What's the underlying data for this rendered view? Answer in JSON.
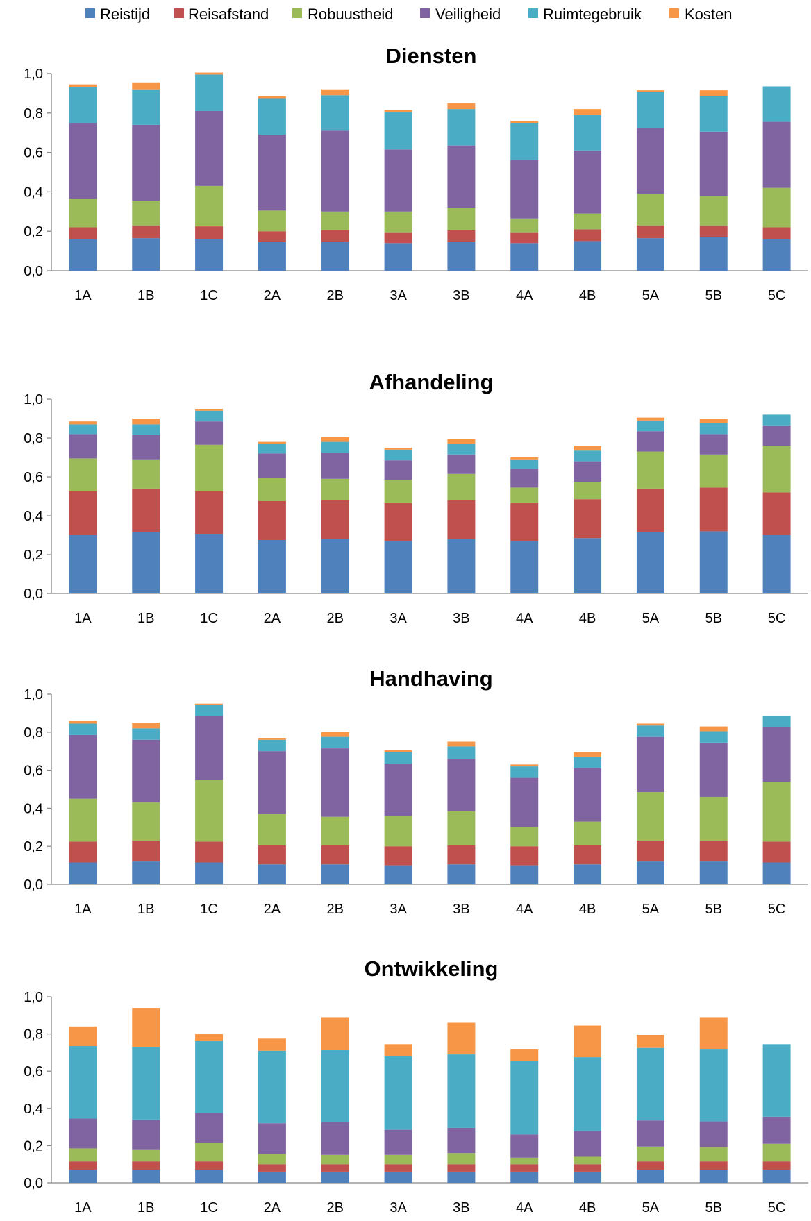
{
  "chart_data": {
    "type": "bar",
    "stacked": true,
    "legend": {
      "placement": "top",
      "entries": [
        {
          "name": "Reistijd",
          "color": "#4F81BD"
        },
        {
          "name": "Reisafstand",
          "color": "#C0504D"
        },
        {
          "name": "Robuustheid",
          "color": "#9BBB59"
        },
        {
          "name": "Veiligheid",
          "color": "#8064A2"
        },
        {
          "name": "Ruimtegebruik",
          "color": "#4BACC6"
        },
        {
          "name": "Kosten",
          "color": "#F79646"
        }
      ]
    },
    "categories": [
      "1A",
      "1B",
      "1C",
      "2A",
      "2B",
      "3A",
      "3B",
      "4A",
      "4B",
      "5A",
      "5B",
      "5C"
    ],
    "ylim": [
      0,
      1.0
    ],
    "yticks": [
      "0,0",
      "0,2",
      "0,4",
      "0,6",
      "0,8",
      "1,0"
    ],
    "grid": false,
    "panels": [
      {
        "title": "Diensten",
        "series": [
          {
            "name": "Reistijd",
            "values": [
              0.16,
              0.165,
              0.16,
              0.145,
              0.145,
              0.14,
              0.145,
              0.14,
              0.15,
              0.165,
              0.17,
              0.16
            ]
          },
          {
            "name": "Reisafstand",
            "values": [
              0.06,
              0.065,
              0.065,
              0.055,
              0.06,
              0.055,
              0.06,
              0.055,
              0.06,
              0.065,
              0.06,
              0.06
            ]
          },
          {
            "name": "Robuustheid",
            "values": [
              0.145,
              0.125,
              0.205,
              0.105,
              0.095,
              0.105,
              0.115,
              0.07,
              0.08,
              0.16,
              0.15,
              0.2
            ]
          },
          {
            "name": "Veiligheid",
            "values": [
              0.385,
              0.385,
              0.38,
              0.385,
              0.41,
              0.315,
              0.315,
              0.295,
              0.32,
              0.335,
              0.325,
              0.335
            ]
          },
          {
            "name": "Ruimtegebruik",
            "values": [
              0.18,
              0.18,
              0.185,
              0.185,
              0.18,
              0.19,
              0.185,
              0.19,
              0.18,
              0.18,
              0.18,
              0.18
            ]
          },
          {
            "name": "Kosten",
            "values": [
              0.015,
              0.035,
              0.01,
              0.01,
              0.03,
              0.01,
              0.03,
              0.01,
              0.03,
              0.01,
              0.03,
              0.0
            ]
          }
        ]
      },
      {
        "title": "Afhandeling",
        "series": [
          {
            "name": "Reistijd",
            "values": [
              0.3,
              0.315,
              0.305,
              0.275,
              0.28,
              0.27,
              0.28,
              0.27,
              0.285,
              0.315,
              0.32,
              0.3
            ]
          },
          {
            "name": "Reisafstand",
            "values": [
              0.225,
              0.225,
              0.22,
              0.2,
              0.2,
              0.195,
              0.2,
              0.195,
              0.2,
              0.225,
              0.225,
              0.22
            ]
          },
          {
            "name": "Robuustheid",
            "values": [
              0.17,
              0.15,
              0.24,
              0.12,
              0.11,
              0.12,
              0.135,
              0.08,
              0.09,
              0.19,
              0.17,
              0.24
            ]
          },
          {
            "name": "Veiligheid",
            "values": [
              0.125,
              0.125,
              0.12,
              0.125,
              0.135,
              0.1,
              0.1,
              0.095,
              0.105,
              0.105,
              0.105,
              0.105
            ]
          },
          {
            "name": "Ruimtegebruik",
            "values": [
              0.05,
              0.055,
              0.055,
              0.05,
              0.055,
              0.055,
              0.055,
              0.05,
              0.055,
              0.055,
              0.055,
              0.055
            ]
          },
          {
            "name": "Kosten",
            "values": [
              0.015,
              0.03,
              0.01,
              0.01,
              0.025,
              0.01,
              0.025,
              0.01,
              0.025,
              0.015,
              0.025,
              0.0
            ]
          }
        ]
      },
      {
        "title": "Handhaving",
        "series": [
          {
            "name": "Reistijd",
            "values": [
              0.115,
              0.12,
              0.115,
              0.105,
              0.105,
              0.1,
              0.105,
              0.1,
              0.105,
              0.12,
              0.12,
              0.115
            ]
          },
          {
            "name": "Reisafstand",
            "values": [
              0.11,
              0.11,
              0.11,
              0.1,
              0.1,
              0.1,
              0.1,
              0.1,
              0.1,
              0.11,
              0.11,
              0.11
            ]
          },
          {
            "name": "Robuustheid",
            "values": [
              0.225,
              0.2,
              0.325,
              0.165,
              0.15,
              0.16,
              0.18,
              0.1,
              0.125,
              0.255,
              0.23,
              0.315
            ]
          },
          {
            "name": "Veiligheid",
            "values": [
              0.335,
              0.33,
              0.335,
              0.33,
              0.36,
              0.275,
              0.275,
              0.26,
              0.28,
              0.29,
              0.285,
              0.285
            ]
          },
          {
            "name": "Ruimtegebruik",
            "values": [
              0.06,
              0.06,
              0.06,
              0.06,
              0.06,
              0.06,
              0.065,
              0.06,
              0.06,
              0.06,
              0.06,
              0.06
            ]
          },
          {
            "name": "Kosten",
            "values": [
              0.015,
              0.03,
              0.005,
              0.01,
              0.025,
              0.01,
              0.025,
              0.01,
              0.025,
              0.01,
              0.025,
              0.0
            ]
          }
        ]
      },
      {
        "title": "Ontwikkeling",
        "series": [
          {
            "name": "Reistijd",
            "values": [
              0.07,
              0.07,
              0.07,
              0.06,
              0.06,
              0.06,
              0.06,
              0.06,
              0.06,
              0.07,
              0.07,
              0.07
            ]
          },
          {
            "name": "Reisafstand",
            "values": [
              0.045,
              0.045,
              0.045,
              0.04,
              0.04,
              0.04,
              0.04,
              0.04,
              0.04,
              0.045,
              0.045,
              0.045
            ]
          },
          {
            "name": "Robuustheid",
            "values": [
              0.07,
              0.065,
              0.1,
              0.055,
              0.05,
              0.05,
              0.06,
              0.035,
              0.04,
              0.08,
              0.075,
              0.095
            ]
          },
          {
            "name": "Veiligheid",
            "values": [
              0.16,
              0.16,
              0.16,
              0.165,
              0.175,
              0.135,
              0.135,
              0.125,
              0.14,
              0.14,
              0.14,
              0.145
            ]
          },
          {
            "name": "Ruimtegebruik",
            "values": [
              0.39,
              0.39,
              0.39,
              0.39,
              0.39,
              0.395,
              0.395,
              0.395,
              0.395,
              0.39,
              0.39,
              0.39
            ]
          },
          {
            "name": "Kosten",
            "values": [
              0.105,
              0.21,
              0.035,
              0.065,
              0.175,
              0.065,
              0.17,
              0.065,
              0.17,
              0.07,
              0.17,
              0.0
            ]
          }
        ]
      }
    ]
  }
}
